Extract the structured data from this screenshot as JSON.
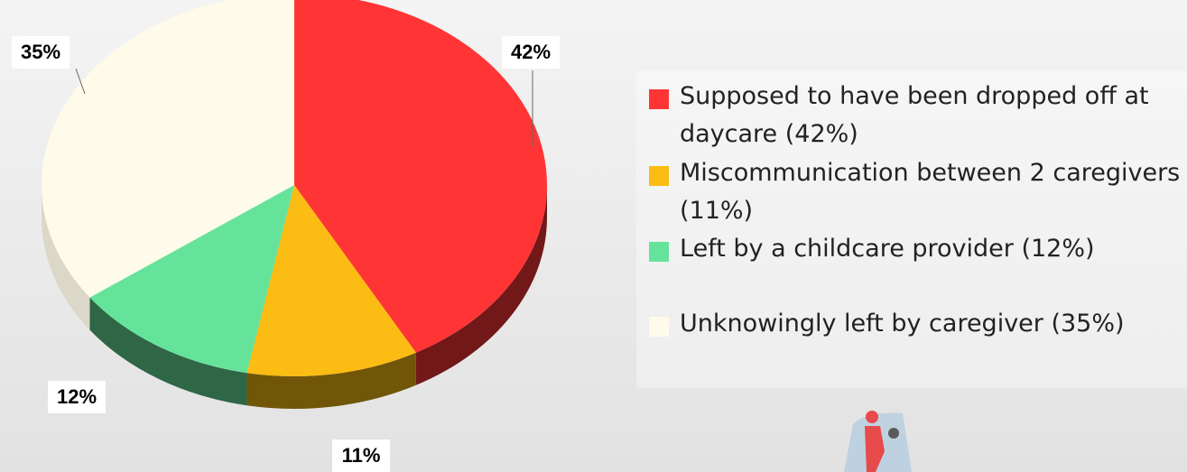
{
  "chart_data": {
    "type": "pie",
    "categories": [
      "Supposed to have been dropped off at daycare (42%)",
      "Miscommunication between 2 caregivers (11%)",
      "Left by a childcare provider (12%)",
      "Unknowingly left by caregiver (35%)"
    ],
    "values": [
      42,
      11,
      12,
      35
    ],
    "value_labels": [
      "42%",
      "11%",
      "12%",
      "35%"
    ],
    "colors": [
      "#ff3535",
      "#fbbc13",
      "#66e39b",
      "#fffbea"
    ],
    "legend": "right"
  }
}
